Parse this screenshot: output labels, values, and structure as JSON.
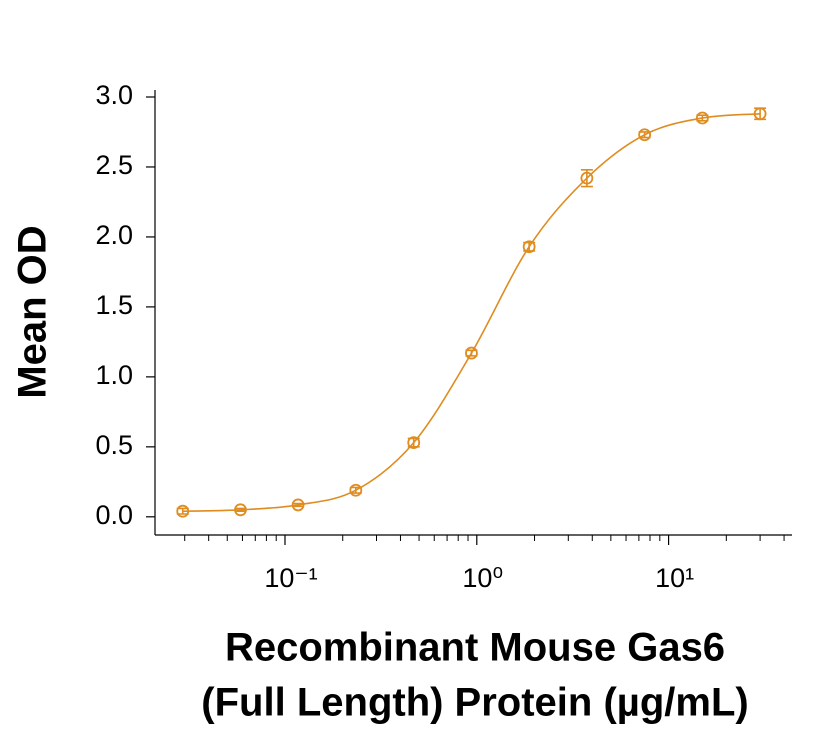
{
  "chart_data": {
    "type": "scatter",
    "x_label": "Recombinant Mouse Gas6",
    "x_label_line2": "(Full Length) Protein (µg/mL)",
    "y_label": "Mean OD",
    "x_log": true,
    "x": [
      0.0293,
      0.0586,
      0.117,
      0.234,
      0.469,
      0.938,
      1.875,
      3.75,
      7.5,
      15,
      30
    ],
    "series": [
      {
        "color": "#df8c20",
        "values": [
          0.04,
          0.05,
          0.085,
          0.19,
          0.53,
          1.17,
          1.93,
          2.42,
          2.73,
          2.85,
          2.88
        ],
        "errors": [
          0.02,
          0.01,
          0.01,
          0.02,
          0.03,
          0.02,
          0.03,
          0.06,
          0.02,
          0.02,
          0.04
        ]
      }
    ],
    "xlim": [
      0.021,
      44
    ],
    "ylim": [
      -0.13,
      3.05
    ],
    "xticks": [
      {
        "value": 0.1,
        "label": "10⁻¹"
      },
      {
        "value": 1,
        "label": "10⁰"
      },
      {
        "value": 10,
        "label": "10¹"
      }
    ],
    "xminorticks": [
      0.03,
      0.04,
      0.05,
      0.06,
      0.07,
      0.08,
      0.09,
      0.2,
      0.3,
      0.4,
      0.5,
      0.6,
      0.7,
      0.8,
      0.9,
      2,
      3,
      4,
      5,
      6,
      7,
      8,
      9,
      20,
      30,
      40
    ],
    "yticks": [
      {
        "value": 0,
        "label": "0.0"
      },
      {
        "value": 0.5,
        "label": "0.5"
      },
      {
        "value": 1,
        "label": "1.0"
      },
      {
        "value": 1.5,
        "label": "1.5"
      },
      {
        "value": 2,
        "label": "2.0"
      },
      {
        "value": 2.5,
        "label": "2.5"
      },
      {
        "value": 3,
        "label": "3.0"
      }
    ]
  }
}
